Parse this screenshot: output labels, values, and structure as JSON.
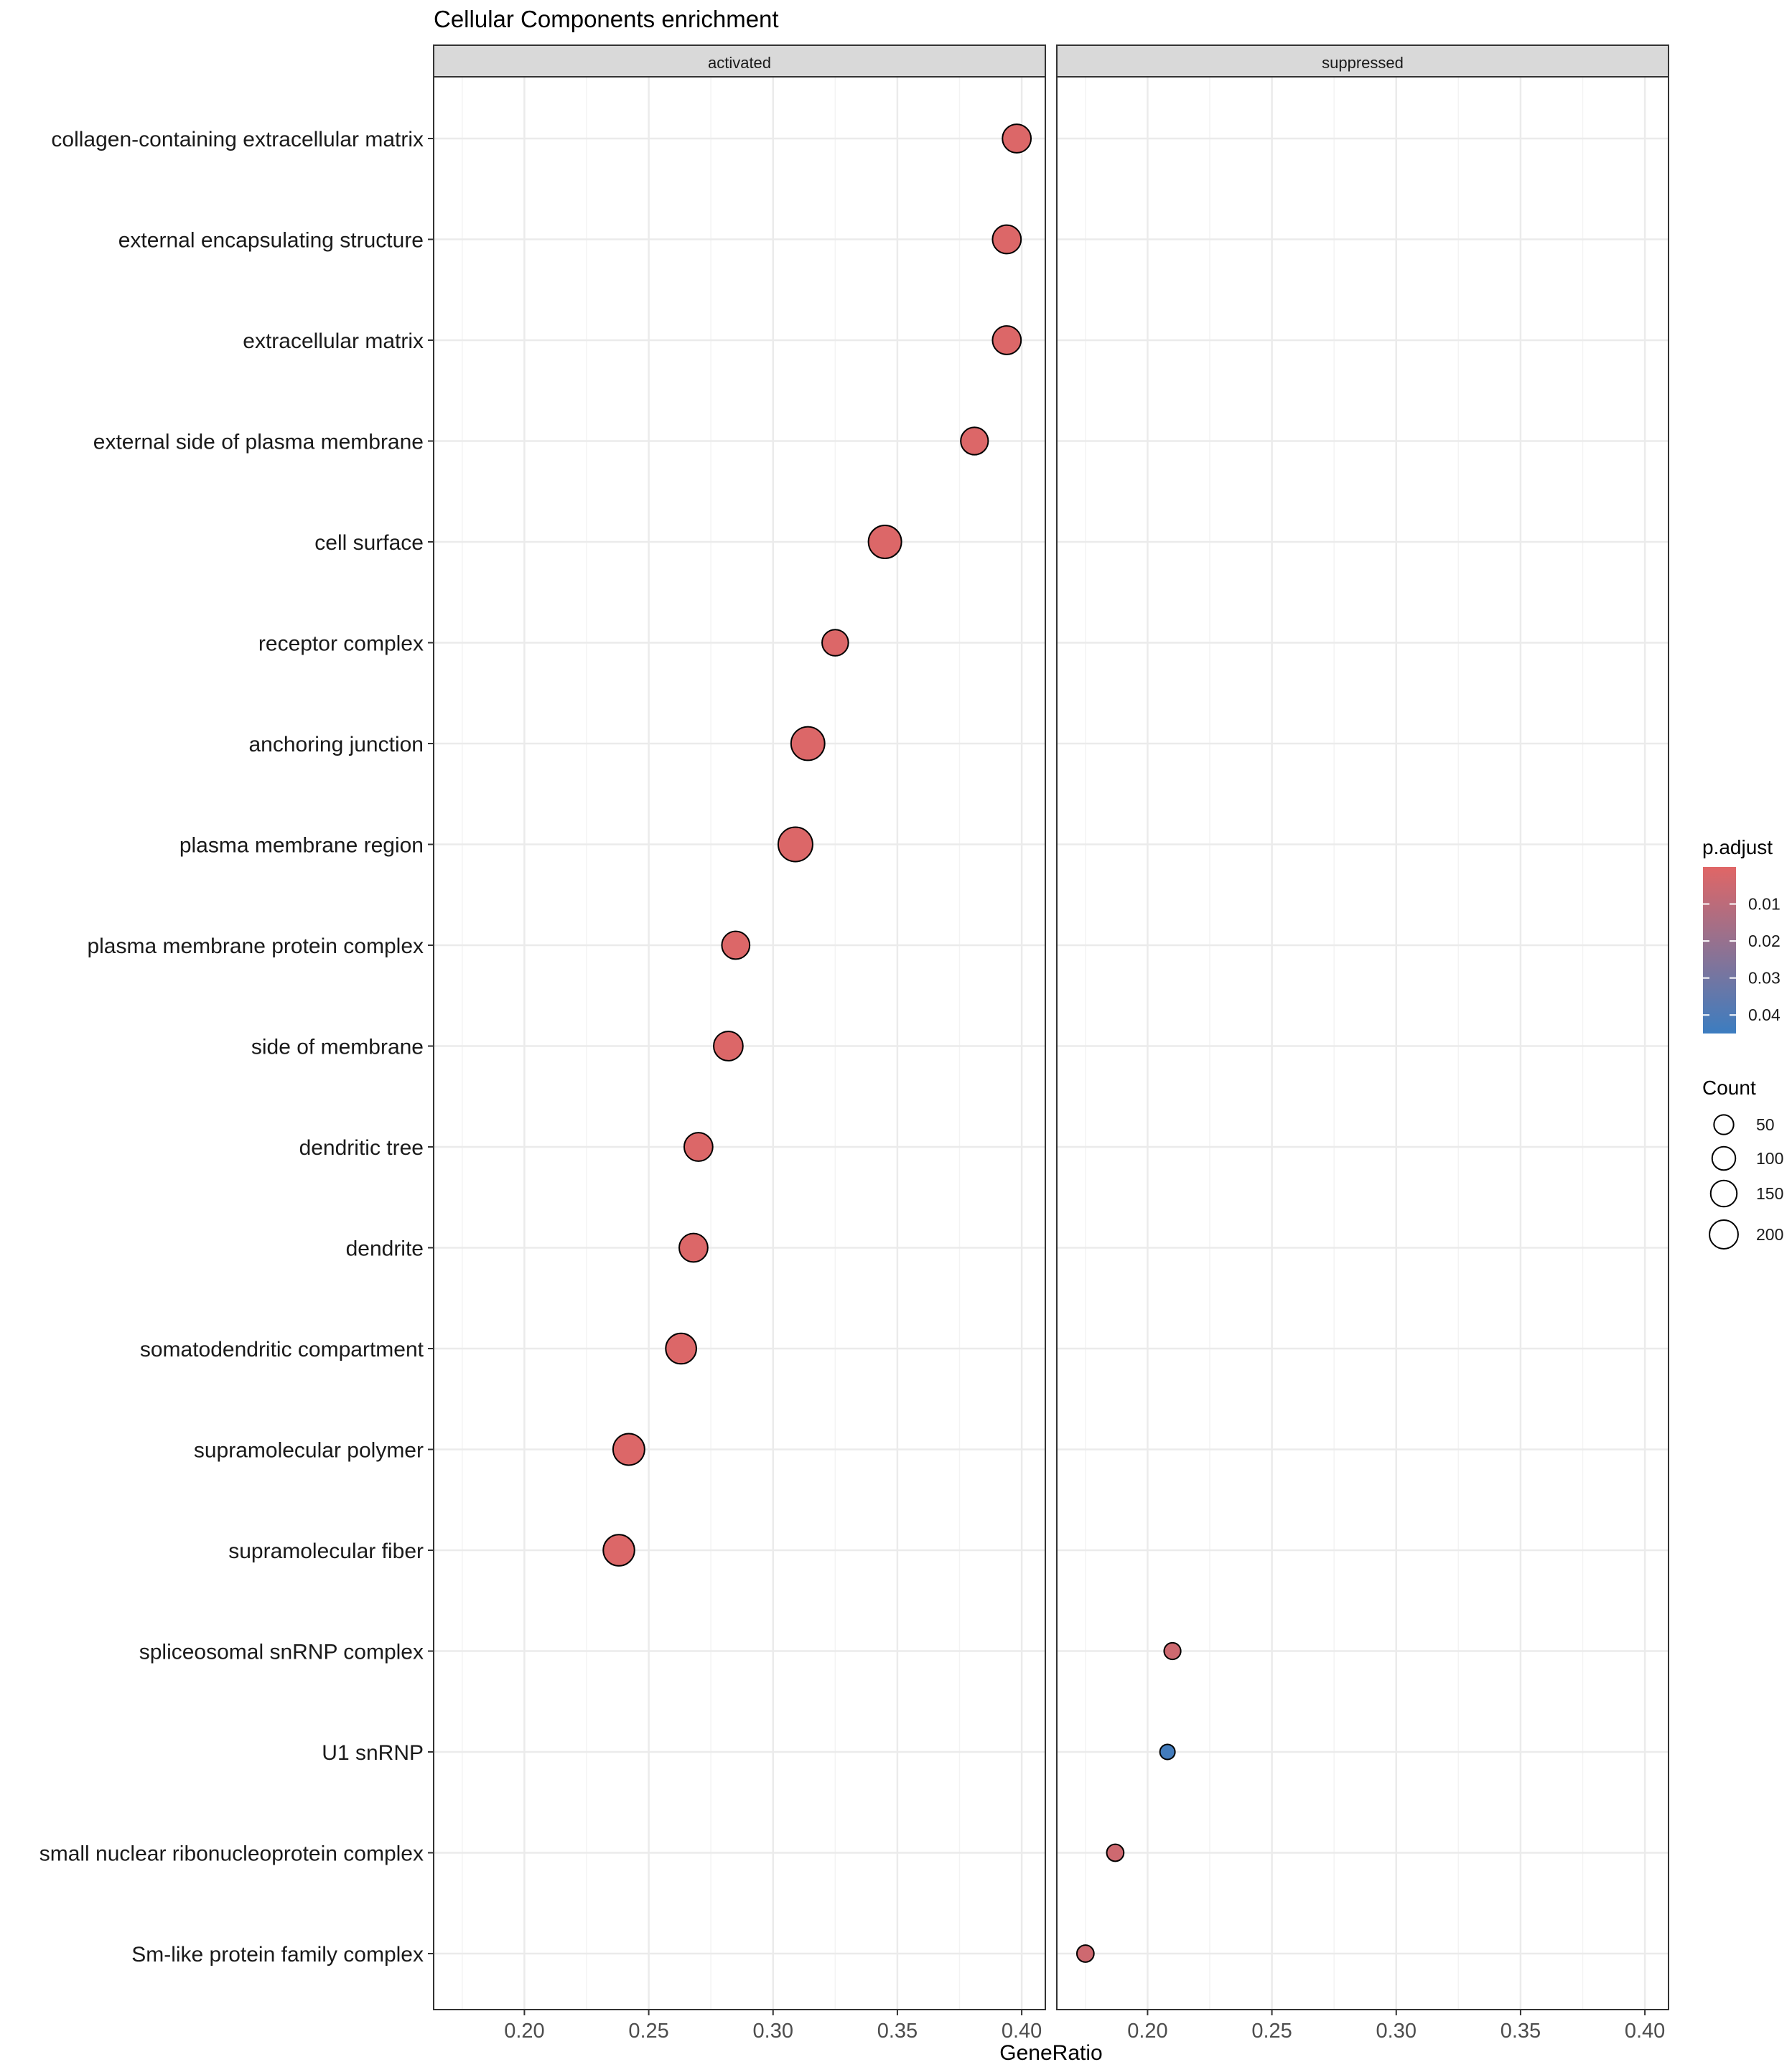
{
  "chart_data": {
    "type": "scatter",
    "title": "Cellular Components enrichment",
    "xlabel": "GeneRatio",
    "ylabel": "",
    "xlim": [
      0.1635,
      0.4095
    ],
    "xticks": [
      0.2,
      0.25,
      0.3,
      0.35,
      0.4
    ],
    "xtick_labels": [
      "0.20",
      "0.25",
      "0.30",
      "0.35",
      "0.40"
    ],
    "grid": true,
    "facets": [
      "activated",
      "suppressed"
    ],
    "categories": [
      "collagen-containing extracellular matrix",
      "external encapsulating structure",
      "extracellular matrix",
      "external side of plasma membrane",
      "cell surface",
      "receptor complex",
      "anchoring junction",
      "plasma membrane region",
      "plasma membrane protein complex",
      "side of membrane",
      "dendritic tree",
      "dendrite",
      "somatodendritic compartment",
      "supramolecular polymer",
      "supramolecular fiber",
      "spliceosomal snRNP complex",
      "U1 snRNP",
      "small nuclear ribonucleoprotein complex",
      "Sm-like protein family complex"
    ],
    "points": [
      {
        "facet": "activated",
        "term": "collagen-containing extracellular matrix",
        "gene_ratio": 0.398,
        "count": 130,
        "p_adjust": 0.001
      },
      {
        "facet": "activated",
        "term": "external encapsulating structure",
        "gene_ratio": 0.394,
        "count": 130,
        "p_adjust": 0.001
      },
      {
        "facet": "activated",
        "term": "extracellular matrix",
        "gene_ratio": 0.394,
        "count": 130,
        "p_adjust": 0.001
      },
      {
        "facet": "activated",
        "term": "external side of plasma membrane",
        "gene_ratio": 0.381,
        "count": 115,
        "p_adjust": 0.001
      },
      {
        "facet": "activated",
        "term": "cell surface",
        "gene_ratio": 0.345,
        "count": 200,
        "p_adjust": 0.001
      },
      {
        "facet": "activated",
        "term": "receptor complex",
        "gene_ratio": 0.325,
        "count": 100,
        "p_adjust": 0.001
      },
      {
        "facet": "activated",
        "term": "anchoring junction",
        "gene_ratio": 0.314,
        "count": 210,
        "p_adjust": 0.001
      },
      {
        "facet": "activated",
        "term": "plasma membrane region",
        "gene_ratio": 0.309,
        "count": 225,
        "p_adjust": 0.001
      },
      {
        "facet": "activated",
        "term": "plasma membrane protein complex",
        "gene_ratio": 0.285,
        "count": 120,
        "p_adjust": 0.001
      },
      {
        "facet": "activated",
        "term": "side of membrane",
        "gene_ratio": 0.282,
        "count": 140,
        "p_adjust": 0.001
      },
      {
        "facet": "activated",
        "term": "dendritic tree",
        "gene_ratio": 0.27,
        "count": 130,
        "p_adjust": 0.001
      },
      {
        "facet": "activated",
        "term": "dendrite",
        "gene_ratio": 0.268,
        "count": 130,
        "p_adjust": 0.001
      },
      {
        "facet": "activated",
        "term": "somatodendritic compartment",
        "gene_ratio": 0.263,
        "count": 160,
        "p_adjust": 0.001
      },
      {
        "facet": "activated",
        "term": "supramolecular polymer",
        "gene_ratio": 0.242,
        "count": 175,
        "p_adjust": 0.001
      },
      {
        "facet": "activated",
        "term": "supramolecular fiber",
        "gene_ratio": 0.238,
        "count": 170,
        "p_adjust": 0.001
      },
      {
        "facet": "suppressed",
        "term": "spliceosomal snRNP complex",
        "gene_ratio": 0.21,
        "count": 17,
        "p_adjust": 0.005
      },
      {
        "facet": "suppressed",
        "term": "U1 snRNP",
        "gene_ratio": 0.208,
        "count": 10,
        "p_adjust": 0.043
      },
      {
        "facet": "suppressed",
        "term": "small nuclear ribonucleoprotein complex",
        "gene_ratio": 0.187,
        "count": 19,
        "p_adjust": 0.005
      },
      {
        "facet": "suppressed",
        "term": "Sm-like protein family complex",
        "gene_ratio": 0.175,
        "count": 19,
        "p_adjust": 0.005
      }
    ],
    "legend": {
      "placement": "right",
      "color": {
        "title": "p.adjust",
        "range": [
          0.0,
          0.045
        ],
        "ticks": [
          0.01,
          0.02,
          0.03,
          0.04
        ],
        "tick_labels": [
          "0.01",
          "0.02",
          "0.03",
          "0.04"
        ],
        "low_color": "#E06666",
        "high_color": "#3C7DC0"
      },
      "size": {
        "title": "Count",
        "values": [
          50,
          100,
          150,
          200
        ],
        "labels": [
          "50",
          "100",
          "150",
          "200"
        ]
      }
    },
    "colors": {
      "point_outline": "#000000",
      "strip_fill": "#D9D9D9",
      "grid": "#EBEBEB",
      "panel_border": "#333333"
    }
  }
}
